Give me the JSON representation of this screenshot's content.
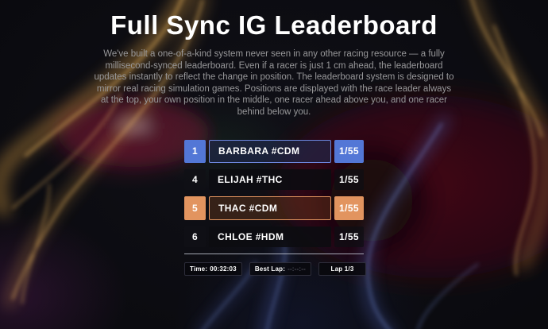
{
  "title": "Full Sync IG Leaderboard",
  "description": "We've built a one-of-a-kind system never seen in any other racing resource — a fully millisecond-synced leaderboard. Even if a racer is just 1 cm ahead, the leaderboard updates instantly to reflect the change in position. The leaderboard system is designed to mirror real racing simulation games. Positions are displayed with the race leader always at the top, your own position in the middle, one racer ahead above you, and one racer behind below you.",
  "leaderboard": {
    "rows": [
      {
        "rank": "1",
        "name": "BARBARA #CDM",
        "laps": "1/55",
        "highlight": "leader"
      },
      {
        "rank": "4",
        "name": "ELIJAH #THC",
        "laps": "1/55",
        "highlight": "none"
      },
      {
        "rank": "5",
        "name": "THAC #CDM",
        "laps": "1/55",
        "highlight": "player"
      },
      {
        "rank": "6",
        "name": "CHLOE #HDM",
        "laps": "1/55",
        "highlight": "none"
      }
    ]
  },
  "status_bar": {
    "time": {
      "label": "Time:",
      "value": "00:32:03"
    },
    "best_lap": {
      "label": "Best Lap:",
      "value": "--:--:--"
    },
    "lap": {
      "label": "Lap 1/3"
    }
  },
  "colors": {
    "leader_accent": "#5377d6",
    "player_accent": "#e2945f",
    "background": "#09090d"
  }
}
